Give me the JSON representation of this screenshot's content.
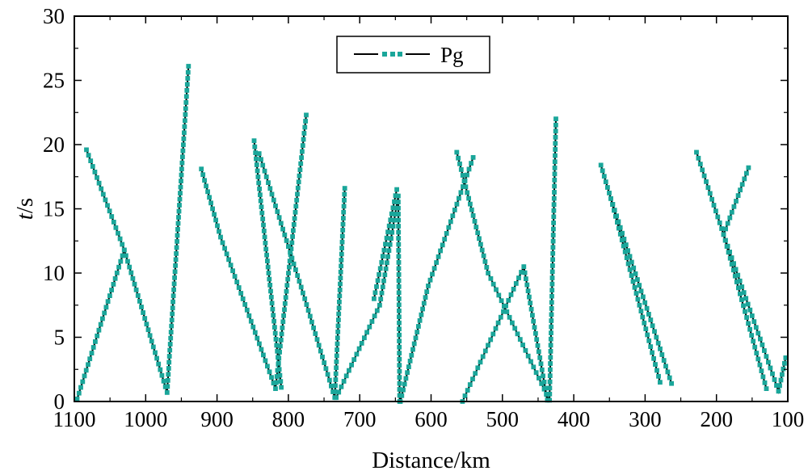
{
  "chart_data": {
    "type": "line",
    "title": "",
    "xlabel": "Distance/km",
    "ylabel_italic": "t",
    "ylabel_rest": "/s",
    "xlim": [
      1100,
      100
    ],
    "ylim": [
      0,
      30
    ],
    "x_ticks": [
      1100,
      1000,
      900,
      800,
      700,
      600,
      500,
      400,
      300,
      200,
      100
    ],
    "y_ticks": [
      0,
      5,
      10,
      15,
      20,
      25,
      30
    ],
    "x_tick_labels": [
      "1100",
      "1000",
      "900",
      "800",
      "700",
      "600",
      "500",
      "400",
      "300",
      "200",
      "100"
    ],
    "y_tick_labels": [
      "0",
      "5",
      "10",
      "15",
      "20",
      "25",
      "30"
    ],
    "grid": false,
    "legend_position": "top-center",
    "line_color": "#000000",
    "marker_color": "#1aa69a",
    "series": [
      {
        "name": "Pg",
        "segments": [
          [
            [
              1083,
              19.6
            ],
            [
              1030,
              11.8
            ],
            [
              970,
              0.7
            ],
            [
              940,
              26.1
            ]
          ],
          [
            [
              1096,
              0.2
            ],
            [
              1030,
              11.8
            ]
          ],
          [
            [
              922,
              18.1
            ],
            [
              895,
              12.8
            ],
            [
              818,
              1.0
            ],
            [
              775,
              22.3
            ]
          ],
          [
            [
              810,
              1.1
            ],
            [
              848,
              20.3
            ]
          ],
          [
            [
              841,
              19.3
            ],
            [
              777,
              8.0
            ],
            [
              735,
              0.3
            ],
            [
              721,
              16.6
            ]
          ],
          [
            [
              733,
              0.3
            ],
            [
              672,
              7.5
            ],
            [
              646,
              16.0
            ],
            [
              644,
              0.0
            ]
          ],
          [
            [
              648,
              16.5
            ],
            [
              680,
              8.0
            ]
          ],
          [
            [
              643,
              0.0
            ],
            [
              604,
              9.0
            ],
            [
              541,
              19.0
            ]
          ],
          [
            [
              564,
              19.4
            ],
            [
              520,
              10.0
            ],
            [
              434,
              0.1
            ],
            [
              425,
              22.0
            ]
          ],
          [
            [
              556,
              0.0
            ],
            [
              470,
              10.5
            ],
            [
              437,
              0.1
            ]
          ],
          [
            [
              362,
              18.4
            ],
            [
              348,
              15.8
            ],
            [
              263,
              1.4
            ]
          ],
          [
            [
              279,
              1.5
            ],
            [
              348,
              15.8
            ]
          ],
          [
            [
              228,
              19.4
            ],
            [
              190,
              13.0
            ],
            [
              113,
              0.8
            ],
            [
              103,
              3.4
            ]
          ],
          [
            [
              130,
              1.0
            ],
            [
              190,
              13.0
            ],
            [
              155,
              18.2
            ]
          ]
        ]
      }
    ]
  }
}
